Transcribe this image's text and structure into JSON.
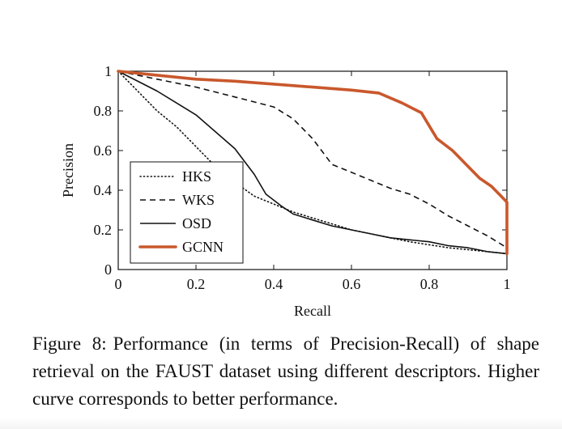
{
  "chart_data": {
    "type": "line",
    "title": "",
    "xlabel": "Recall",
    "ylabel": "Precision",
    "xlim": [
      0,
      1
    ],
    "ylim": [
      0,
      1
    ],
    "x_ticks": [
      "0",
      "0.2",
      "0.4",
      "0.6",
      "0.8",
      "1"
    ],
    "y_ticks": [
      "0",
      "0.2",
      "0.4",
      "0.6",
      "0.8",
      "1"
    ],
    "grid": false,
    "legend_position": "bottom-left",
    "series": [
      {
        "name": "HKS",
        "style": "dotted",
        "color": "#111111",
        "x": [
          0,
          0.05,
          0.1,
          0.15,
          0.2,
          0.25,
          0.3,
          0.35,
          0.4,
          0.45,
          0.5,
          0.55,
          0.6,
          0.65,
          0.7,
          0.75,
          0.8,
          0.85,
          0.9,
          0.95,
          1
        ],
        "y": [
          1,
          0.9,
          0.8,
          0.72,
          0.62,
          0.52,
          0.44,
          0.37,
          0.33,
          0.29,
          0.26,
          0.23,
          0.2,
          0.18,
          0.16,
          0.14,
          0.125,
          0.11,
          0.1,
          0.09,
          0.08
        ]
      },
      {
        "name": "WKS",
        "style": "dashed",
        "color": "#111111",
        "x": [
          0,
          0.1,
          0.2,
          0.3,
          0.4,
          0.45,
          0.5,
          0.55,
          0.6,
          0.65,
          0.7,
          0.75,
          0.8,
          0.85,
          0.9,
          0.95,
          1
        ],
        "y": [
          1,
          0.96,
          0.92,
          0.87,
          0.82,
          0.76,
          0.66,
          0.53,
          0.49,
          0.45,
          0.41,
          0.38,
          0.33,
          0.27,
          0.22,
          0.17,
          0.11
        ]
      },
      {
        "name": "OSD",
        "style": "solid",
        "color": "#111111",
        "x": [
          0,
          0.1,
          0.2,
          0.3,
          0.35,
          0.38,
          0.42,
          0.45,
          0.5,
          0.55,
          0.6,
          0.65,
          0.7,
          0.75,
          0.8,
          0.85,
          0.9,
          0.95,
          1
        ],
        "y": [
          1,
          0.9,
          0.78,
          0.61,
          0.48,
          0.38,
          0.32,
          0.28,
          0.25,
          0.22,
          0.2,
          0.18,
          0.16,
          0.15,
          0.14,
          0.12,
          0.11,
          0.09,
          0.08
        ]
      },
      {
        "name": "GCNN",
        "style": "solid-thick",
        "color": "#c9582c",
        "x": [
          0,
          0.1,
          0.2,
          0.3,
          0.4,
          0.5,
          0.6,
          0.67,
          0.73,
          0.78,
          0.82,
          0.86,
          0.9,
          0.93,
          0.96,
          0.98,
          1,
          1
        ],
        "y": [
          1,
          0.98,
          0.96,
          0.95,
          0.935,
          0.92,
          0.905,
          0.89,
          0.84,
          0.79,
          0.66,
          0.6,
          0.52,
          0.46,
          0.42,
          0.38,
          0.34,
          0.08
        ]
      }
    ]
  },
  "caption": {
    "label": "Figure 8:",
    "text": "Performance (in terms of Precision-Recall) of shape retrieval on the FAUST dataset using different descriptors. Higher curve corresponds to better performance."
  }
}
